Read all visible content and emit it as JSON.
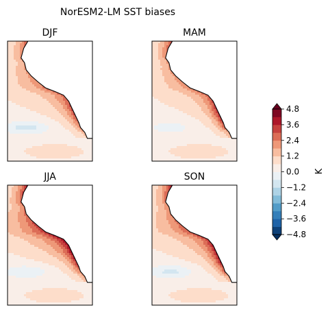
{
  "chart_data": {
    "type": "heatmap",
    "title": "NorESM2-LM SST biases",
    "panels": [
      {
        "title": "DJF",
        "coast_bias": 3.8,
        "interior_bias": 1.6,
        "cold_band": -1.2
      },
      {
        "title": "MAM",
        "coast_bias": 4.2,
        "interior_bias": 1.4,
        "cold_band": -0.6
      },
      {
        "title": "JJA",
        "coast_bias": 5.0,
        "interior_bias": 2.6,
        "cold_band": -0.9
      },
      {
        "title": "SON",
        "coast_bias": 4.8,
        "interior_bias": 2.0,
        "cold_band": -1.1
      }
    ],
    "colorbar": {
      "label": "K",
      "min": -4.8,
      "max": 4.8,
      "step": 0.6,
      "ticks": [
        -4.8,
        -3.6,
        -2.4,
        -1.2,
        0.0,
        1.2,
        2.4,
        3.6,
        4.8
      ],
      "tick_labels": [
        "−4.8",
        "−3.6",
        "−2.4",
        "−1.2",
        "0.0",
        "1.2",
        "2.4",
        "3.6",
        "4.8"
      ],
      "extend": "both"
    },
    "colormap": [
      "#053061",
      "#2166ac",
      "#4393c3",
      "#92c5de",
      "#d1e5f0",
      "#f7f7f7",
      "#fddbc7",
      "#f4a582",
      "#d6604d",
      "#b2182b",
      "#67001f"
    ]
  }
}
